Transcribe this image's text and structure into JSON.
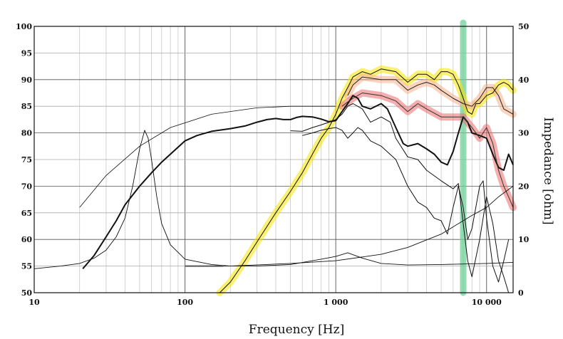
{
  "chart_data": {
    "type": "line",
    "xlabel": "Frequency [Hz]",
    "y2label": "Impedance [ohm]",
    "xscale": "log",
    "xlim": [
      10,
      15000
    ],
    "ylim": [
      50,
      100
    ],
    "y2lim": [
      0,
      50
    ],
    "grid": true,
    "x_tick_labels": [
      {
        "value": 10,
        "label": "10"
      },
      {
        "value": 100,
        "label": "100"
      },
      {
        "value": 1000,
        "label": "1 000"
      },
      {
        "value": 10000,
        "label": "10 000"
      }
    ],
    "y_tick_labels": [
      "50",
      "55",
      "60",
      "65",
      "70",
      "75",
      "80",
      "85",
      "90",
      "95",
      "100"
    ],
    "y2_tick_labels": [
      "0",
      "10",
      "20",
      "30",
      "40",
      "50"
    ],
    "markers": [
      {
        "name": "vertical-band",
        "x": 7000,
        "color": "#6fcf97"
      }
    ],
    "series": [
      {
        "axis": "left",
        "color": "#111111",
        "width": 2.0,
        "highlight": "",
        "points": [
          [
            21,
            54.5
          ],
          [
            25,
            57
          ],
          [
            30,
            60.5
          ],
          [
            35,
            63.5
          ],
          [
            40,
            66.5
          ],
          [
            50,
            70
          ],
          [
            60,
            72.5
          ],
          [
            70,
            74.5
          ],
          [
            80,
            76
          ],
          [
            100,
            78.5
          ],
          [
            120,
            79.5
          ],
          [
            150,
            80.3
          ],
          [
            200,
            80.8
          ],
          [
            250,
            81.3
          ],
          [
            300,
            82
          ],
          [
            350,
            82.5
          ],
          [
            400,
            82.7
          ],
          [
            450,
            82.5
          ],
          [
            500,
            82.5
          ],
          [
            550,
            82.9
          ],
          [
            600,
            83.1
          ],
          [
            700,
            83
          ],
          [
            800,
            82.6
          ],
          [
            900,
            82.1
          ],
          [
            1000,
            82.3
          ],
          [
            1100,
            84
          ],
          [
            1200,
            85.5
          ],
          [
            1300,
            87
          ],
          [
            1400,
            86.5
          ],
          [
            1500,
            85
          ],
          [
            1700,
            84.5
          ],
          [
            2000,
            85.5
          ],
          [
            2200,
            84.5
          ],
          [
            2500,
            81
          ],
          [
            2800,
            78
          ],
          [
            3000,
            77.5
          ],
          [
            3500,
            78
          ],
          [
            4000,
            77
          ],
          [
            4500,
            76
          ],
          [
            5000,
            74.5
          ],
          [
            5500,
            74
          ],
          [
            6000,
            76.5
          ],
          [
            6500,
            80
          ],
          [
            7000,
            83
          ],
          [
            7500,
            82
          ],
          [
            8000,
            80
          ],
          [
            9000,
            79.5
          ],
          [
            10000,
            79
          ],
          [
            11000,
            76
          ],
          [
            12000,
            73.5
          ],
          [
            13000,
            73
          ],
          [
            14000,
            76
          ],
          [
            15000,
            74
          ]
        ]
      },
      {
        "axis": "left",
        "color": "#111111",
        "width": 1.0,
        "highlight": "",
        "points": [
          [
            500,
            80.4
          ],
          [
            600,
            80.3
          ],
          [
            700,
            81
          ],
          [
            800,
            81.5
          ],
          [
            900,
            82
          ],
          [
            1000,
            82.5
          ],
          [
            1100,
            83.5
          ],
          [
            1200,
            85
          ],
          [
            1300,
            85.5
          ],
          [
            1500,
            84.5
          ],
          [
            1700,
            82
          ],
          [
            2000,
            83
          ],
          [
            2300,
            82
          ],
          [
            2500,
            79
          ],
          [
            3000,
            75.5
          ],
          [
            3500,
            75
          ],
          [
            4000,
            73
          ],
          [
            5000,
            71
          ],
          [
            6000,
            69.5
          ],
          [
            6500,
            70.5
          ],
          [
            7000,
            63
          ],
          [
            7500,
            56
          ],
          [
            8000,
            53
          ],
          [
            9000,
            60
          ],
          [
            10000,
            68
          ],
          [
            11000,
            63
          ],
          [
            12000,
            56
          ],
          [
            13000,
            53
          ],
          [
            14000,
            50
          ]
        ]
      },
      {
        "axis": "left",
        "color": "#111111",
        "width": 1.0,
        "highlight": "",
        "points": [
          [
            600,
            79.5
          ],
          [
            700,
            80
          ],
          [
            800,
            80.5
          ],
          [
            900,
            80.8
          ],
          [
            1000,
            81
          ],
          [
            1100,
            80.5
          ],
          [
            1200,
            79
          ],
          [
            1300,
            80
          ],
          [
            1400,
            81
          ],
          [
            1500,
            80.5
          ],
          [
            1700,
            78.5
          ],
          [
            2000,
            77.5
          ],
          [
            2500,
            75
          ],
          [
            3000,
            70
          ],
          [
            3500,
            67
          ],
          [
            4000,
            66
          ],
          [
            4500,
            64
          ],
          [
            5000,
            63.5
          ],
          [
            5500,
            61
          ],
          [
            6000,
            66
          ],
          [
            6500,
            70
          ],
          [
            7000,
            66
          ],
          [
            7500,
            60
          ],
          [
            8000,
            62
          ],
          [
            9000,
            70
          ],
          [
            9500,
            71
          ],
          [
            10000,
            64
          ],
          [
            11000,
            55
          ],
          [
            12000,
            52
          ],
          [
            13000,
            56
          ],
          [
            14000,
            60
          ]
        ]
      },
      {
        "axis": "left",
        "color": "#111111",
        "width": 1.0,
        "highlight": "#f5e600",
        "points": [
          [
            170,
            50
          ],
          [
            200,
            52
          ],
          [
            250,
            56
          ],
          [
            300,
            59.5
          ],
          [
            400,
            65
          ],
          [
            500,
            69
          ],
          [
            600,
            72.5
          ],
          [
            700,
            76
          ],
          [
            800,
            79
          ],
          [
            900,
            81
          ],
          [
            1000,
            83.5
          ],
          [
            1100,
            86.5
          ],
          [
            1200,
            88.5
          ],
          [
            1300,
            90.5
          ],
          [
            1500,
            91.5
          ],
          [
            1700,
            91
          ],
          [
            2000,
            92
          ],
          [
            2500,
            91.5
          ],
          [
            3000,
            89.5
          ],
          [
            3500,
            91
          ],
          [
            4000,
            91
          ],
          [
            4500,
            90
          ],
          [
            5000,
            91.5
          ],
          [
            5500,
            91.5
          ],
          [
            6000,
            91
          ],
          [
            6500,
            89
          ],
          [
            7000,
            86.5
          ],
          [
            7500,
            84
          ],
          [
            8000,
            83.5
          ],
          [
            8500,
            85.5
          ],
          [
            9000,
            85.5
          ],
          [
            10000,
            87
          ],
          [
            11000,
            87.5
          ],
          [
            12000,
            89
          ],
          [
            13000,
            89.5
          ],
          [
            14000,
            89
          ],
          [
            15000,
            88
          ]
        ]
      },
      {
        "axis": "left",
        "color": "#222222",
        "width": 1.0,
        "highlight": "#f6b08a",
        "points": [
          [
            1200,
            87
          ],
          [
            1300,
            89
          ],
          [
            1500,
            90.5
          ],
          [
            2000,
            90
          ],
          [
            2500,
            90
          ],
          [
            3000,
            88
          ],
          [
            3500,
            89
          ],
          [
            4000,
            89.5
          ],
          [
            4500,
            89
          ],
          [
            5000,
            88
          ],
          [
            6000,
            86.5
          ],
          [
            7000,
            85.5
          ],
          [
            8000,
            85
          ],
          [
            9000,
            86.5
          ],
          [
            10000,
            88.5
          ],
          [
            11000,
            88.5
          ],
          [
            12000,
            87
          ],
          [
            13000,
            84.5
          ],
          [
            14000,
            84
          ],
          [
            15000,
            83.5
          ]
        ]
      },
      {
        "axis": "left",
        "color": "#333333",
        "width": 1.0,
        "highlight": "#ec6b6b",
        "points": [
          [
            1100,
            85
          ],
          [
            1200,
            85.8
          ],
          [
            1300,
            86.5
          ],
          [
            1500,
            87.5
          ],
          [
            2000,
            87
          ],
          [
            2500,
            86
          ],
          [
            3000,
            84
          ],
          [
            3500,
            85.5
          ],
          [
            4000,
            84.5
          ],
          [
            5000,
            83
          ],
          [
            6000,
            83
          ],
          [
            7000,
            83
          ],
          [
            8000,
            81
          ],
          [
            9000,
            79
          ],
          [
            10000,
            81
          ],
          [
            11000,
            78
          ],
          [
            12000,
            73
          ],
          [
            13000,
            70
          ],
          [
            14000,
            68
          ],
          [
            15000,
            66
          ]
        ]
      },
      {
        "axis": "left",
        "color": "#111111",
        "width": 0.8,
        "highlight": "",
        "points": [
          [
            20,
            66
          ],
          [
            30,
            72
          ],
          [
            50,
            77.5
          ],
          [
            80,
            81
          ],
          [
            150,
            83.5
          ],
          [
            300,
            84.7
          ],
          [
            500,
            85
          ],
          [
            1000,
            85
          ]
        ]
      },
      {
        "axis": "right",
        "color": "#111111",
        "width": 0.9,
        "highlight": "",
        "points": [
          [
            10,
            4.5
          ],
          [
            15,
            5
          ],
          [
            20,
            5.5
          ],
          [
            25,
            6.5
          ],
          [
            30,
            8
          ],
          [
            35,
            10.5
          ],
          [
            40,
            14
          ],
          [
            45,
            20
          ],
          [
            50,
            27
          ],
          [
            54,
            30.5
          ],
          [
            57,
            29
          ],
          [
            60,
            25
          ],
          [
            65,
            18
          ],
          [
            70,
            13
          ],
          [
            80,
            9
          ],
          [
            100,
            6.3
          ],
          [
            150,
            5.3
          ],
          [
            200,
            5
          ],
          [
            300,
            5
          ],
          [
            500,
            5.3
          ],
          [
            800,
            6.3
          ],
          [
            1000,
            6.8
          ],
          [
            1200,
            7.5
          ],
          [
            1500,
            6.5
          ],
          [
            2000,
            5.5
          ],
          [
            3000,
            5.2
          ],
          [
            5000,
            5.3
          ],
          [
            10000,
            5.5
          ],
          [
            15000,
            5.7
          ]
        ]
      },
      {
        "axis": "right",
        "color": "#111111",
        "width": 0.9,
        "highlight": "",
        "points": [
          [
            100,
            5
          ],
          [
            200,
            5
          ],
          [
            500,
            5.5
          ],
          [
            1000,
            6
          ],
          [
            2000,
            7.2
          ],
          [
            3000,
            8.5
          ],
          [
            5000,
            11
          ],
          [
            8000,
            14.5
          ],
          [
            10000,
            16
          ],
          [
            12000,
            18
          ],
          [
            15000,
            20
          ]
        ]
      },
      {
        "axis": "right",
        "color": "#555555",
        "width": 2.0,
        "highlight": "",
        "points": [
          [
            100,
            5
          ],
          [
            150,
            5
          ],
          [
            180,
            5
          ]
        ]
      }
    ]
  }
}
